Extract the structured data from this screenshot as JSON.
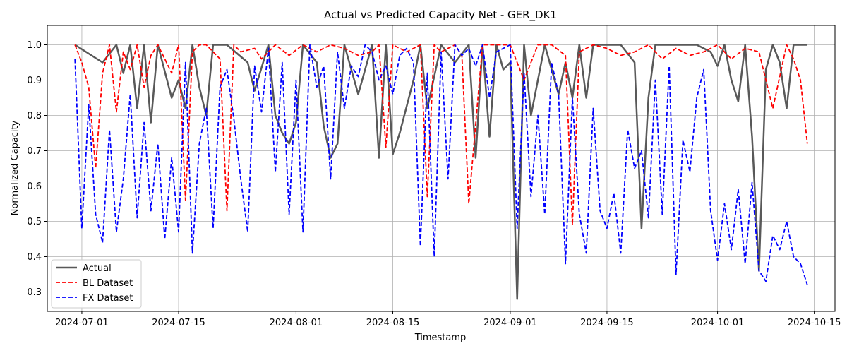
{
  "chart_data": {
    "type": "line",
    "title": "Actual vs Predicted Capacity Net - GER_DK1",
    "xlabel": "Timestamp",
    "ylabel": "Normalized Capacity",
    "x_range": [
      "2024-06-26",
      "2024-10-18"
    ],
    "ylim": [
      0.245,
      1.055
    ],
    "x_ticks": [
      "2024-07-01",
      "2024-07-15",
      "2024-08-01",
      "2024-08-15",
      "2024-09-01",
      "2024-09-15",
      "2024-10-01",
      "2024-10-15"
    ],
    "y_ticks": [
      0.3,
      0.4,
      0.5,
      0.6,
      0.7,
      0.8,
      0.9,
      1.0
    ],
    "y_tick_labels": [
      "0.3",
      "0.4",
      "0.5",
      "0.6",
      "0.7",
      "0.8",
      "0.9",
      "1.0"
    ],
    "grid": true,
    "legend_position": "lower-left",
    "series": [
      {
        "name": "Actual",
        "color": "#595959",
        "style": "solid",
        "x": [
          "2024-06-30",
          "2024-07-04",
          "2024-07-06",
          "2024-07-07",
          "2024-07-08",
          "2024-07-09",
          "2024-07-10",
          "2024-07-11",
          "2024-07-12",
          "2024-07-14",
          "2024-07-15",
          "2024-07-16",
          "2024-07-17",
          "2024-07-18",
          "2024-07-19",
          "2024-07-20",
          "2024-07-22",
          "2024-07-25",
          "2024-07-26",
          "2024-07-28",
          "2024-07-29",
          "2024-07-30",
          "2024-07-31",
          "2024-08-01",
          "2024-08-02",
          "2024-08-04",
          "2024-08-05",
          "2024-08-06",
          "2024-08-07",
          "2024-08-08",
          "2024-08-10",
          "2024-08-12",
          "2024-08-13",
          "2024-08-14",
          "2024-08-15",
          "2024-08-16",
          "2024-08-18",
          "2024-08-19",
          "2024-08-20",
          "2024-08-22",
          "2024-08-24",
          "2024-08-26",
          "2024-08-27",
          "2024-08-28",
          "2024-08-29",
          "2024-08-30",
          "2024-08-31",
          "2024-09-01",
          "2024-09-02",
          "2024-09-03",
          "2024-09-04",
          "2024-09-06",
          "2024-09-08",
          "2024-09-09",
          "2024-09-10",
          "2024-09-11",
          "2024-09-12",
          "2024-09-13",
          "2024-09-15",
          "2024-09-17",
          "2024-09-19",
          "2024-09-20",
          "2024-09-21",
          "2024-09-22",
          "2024-09-24",
          "2024-09-26",
          "2024-09-28",
          "2024-09-30",
          "2024-10-01",
          "2024-10-02",
          "2024-10-03",
          "2024-10-04",
          "2024-10-05",
          "2024-10-06",
          "2024-10-07",
          "2024-10-08",
          "2024-10-09",
          "2024-10-10",
          "2024-10-11",
          "2024-10-12",
          "2024-10-13",
          "2024-10-14"
        ],
        "values": [
          1.0,
          0.95,
          1.0,
          0.92,
          1.0,
          0.82,
          1.0,
          0.78,
          1.0,
          0.85,
          0.9,
          0.82,
          1.0,
          0.88,
          0.8,
          1.0,
          1.0,
          0.95,
          0.87,
          1.0,
          0.8,
          0.75,
          0.72,
          0.78,
          1.0,
          0.95,
          0.77,
          0.68,
          0.72,
          1.0,
          0.86,
          1.0,
          0.68,
          1.0,
          0.69,
          0.75,
          0.9,
          1.0,
          0.82,
          1.0,
          0.95,
          1.0,
          0.68,
          1.0,
          0.74,
          1.0,
          0.93,
          0.95,
          0.28,
          1.0,
          0.8,
          1.0,
          0.86,
          0.95,
          0.85,
          1.0,
          0.85,
          1.0,
          1.0,
          1.0,
          0.95,
          0.48,
          0.85,
          1.0,
          1.0,
          1.0,
          1.0,
          0.98,
          0.94,
          1.0,
          0.9,
          0.84,
          1.0,
          0.74,
          0.36,
          0.93,
          1.0,
          0.95,
          0.82,
          1.0,
          1.0,
          1.0
        ]
      },
      {
        "name": "BL Dataset",
        "color": "#ff0000",
        "style": "dashed",
        "x": [
          "2024-06-30",
          "2024-07-01",
          "2024-07-02",
          "2024-07-03",
          "2024-07-04",
          "2024-07-05",
          "2024-07-06",
          "2024-07-07",
          "2024-07-08",
          "2024-07-09",
          "2024-07-10",
          "2024-07-11",
          "2024-07-12",
          "2024-07-14",
          "2024-07-15",
          "2024-07-16",
          "2024-07-17",
          "2024-07-18",
          "2024-07-19",
          "2024-07-21",
          "2024-07-22",
          "2024-07-23",
          "2024-07-24",
          "2024-07-26",
          "2024-07-27",
          "2024-07-29",
          "2024-07-31",
          "2024-08-02",
          "2024-08-04",
          "2024-08-06",
          "2024-08-08",
          "2024-08-10",
          "2024-08-12",
          "2024-08-13",
          "2024-08-14",
          "2024-08-15",
          "2024-08-17",
          "2024-08-19",
          "2024-08-20",
          "2024-08-21",
          "2024-08-22",
          "2024-08-24",
          "2024-08-25",
          "2024-08-26",
          "2024-08-28",
          "2024-08-30",
          "2024-09-01",
          "2024-09-03",
          "2024-09-05",
          "2024-09-07",
          "2024-09-09",
          "2024-09-10",
          "2024-09-11",
          "2024-09-13",
          "2024-09-15",
          "2024-09-17",
          "2024-09-19",
          "2024-09-21",
          "2024-09-23",
          "2024-09-25",
          "2024-09-27",
          "2024-09-29",
          "2024-10-01",
          "2024-10-03",
          "2024-10-05",
          "2024-10-07",
          "2024-10-09",
          "2024-10-11",
          "2024-10-12",
          "2024-10-13",
          "2024-10-14"
        ],
        "values": [
          1.0,
          0.95,
          0.88,
          0.65,
          0.92,
          1.0,
          0.81,
          0.98,
          0.93,
          1.0,
          0.88,
          0.97,
          1.0,
          0.92,
          1.0,
          0.56,
          0.98,
          1.0,
          1.0,
          0.96,
          0.53,
          1.0,
          0.98,
          0.99,
          0.96,
          1.0,
          0.97,
          1.0,
          0.98,
          1.0,
          0.99,
          0.97,
          0.98,
          1.0,
          0.71,
          1.0,
          0.98,
          1.0,
          0.57,
          1.0,
          0.98,
          1.0,
          0.97,
          0.55,
          1.0,
          1.0,
          1.0,
          0.9,
          1.0,
          1.0,
          0.97,
          0.49,
          0.98,
          1.0,
          0.99,
          0.97,
          0.98,
          1.0,
          0.96,
          0.99,
          0.97,
          0.98,
          1.0,
          0.96,
          0.99,
          0.98,
          0.82,
          1.0,
          0.96,
          0.9,
          0.72
        ]
      },
      {
        "name": "FX Dataset",
        "color": "#0000ff",
        "style": "dashed",
        "x": [
          "2024-06-30",
          "2024-07-01",
          "2024-07-02",
          "2024-07-03",
          "2024-07-04",
          "2024-07-05",
          "2024-07-06",
          "2024-07-07",
          "2024-07-08",
          "2024-07-09",
          "2024-07-10",
          "2024-07-11",
          "2024-07-12",
          "2024-07-13",
          "2024-07-14",
          "2024-07-15",
          "2024-07-16",
          "2024-07-17",
          "2024-07-18",
          "2024-07-19",
          "2024-07-20",
          "2024-07-21",
          "2024-07-22",
          "2024-07-23",
          "2024-07-24",
          "2024-07-25",
          "2024-07-26",
          "2024-07-27",
          "2024-07-28",
          "2024-07-29",
          "2024-07-30",
          "2024-07-31",
          "2024-08-01",
          "2024-08-02",
          "2024-08-03",
          "2024-08-04",
          "2024-08-05",
          "2024-08-06",
          "2024-08-07",
          "2024-08-08",
          "2024-08-09",
          "2024-08-10",
          "2024-08-11",
          "2024-08-12",
          "2024-08-13",
          "2024-08-14",
          "2024-08-15",
          "2024-08-16",
          "2024-08-17",
          "2024-08-18",
          "2024-08-19",
          "2024-08-20",
          "2024-08-21",
          "2024-08-22",
          "2024-08-23",
          "2024-08-24",
          "2024-08-25",
          "2024-08-26",
          "2024-08-27",
          "2024-08-28",
          "2024-08-29",
          "2024-08-30",
          "2024-08-31",
          "2024-09-01",
          "2024-09-02",
          "2024-09-03",
          "2024-09-04",
          "2024-09-05",
          "2024-09-06",
          "2024-09-07",
          "2024-09-08",
          "2024-09-09",
          "2024-09-10",
          "2024-09-11",
          "2024-09-12",
          "2024-09-13",
          "2024-09-14",
          "2024-09-15",
          "2024-09-16",
          "2024-09-17",
          "2024-09-18",
          "2024-09-19",
          "2024-09-20",
          "2024-09-21",
          "2024-09-22",
          "2024-09-23",
          "2024-09-24",
          "2024-09-25",
          "2024-09-26",
          "2024-09-27",
          "2024-09-28",
          "2024-09-29",
          "2024-09-30",
          "2024-10-01",
          "2024-10-02",
          "2024-10-03",
          "2024-10-04",
          "2024-10-05",
          "2024-10-06",
          "2024-10-07",
          "2024-10-08",
          "2024-10-09",
          "2024-10-10",
          "2024-10-11",
          "2024-10-12",
          "2024-10-13",
          "2024-10-14"
        ],
        "values": [
          0.96,
          0.48,
          0.83,
          0.52,
          0.44,
          0.76,
          0.47,
          0.62,
          0.86,
          0.51,
          0.78,
          0.53,
          0.72,
          0.45,
          0.68,
          0.47,
          0.95,
          0.41,
          0.72,
          0.82,
          0.48,
          0.88,
          0.93,
          0.79,
          0.62,
          0.47,
          0.94,
          0.81,
          0.99,
          0.64,
          0.95,
          0.52,
          0.9,
          0.47,
          1.0,
          0.88,
          0.94,
          0.62,
          0.98,
          0.82,
          0.94,
          0.91,
          1.0,
          0.98,
          0.9,
          0.94,
          0.86,
          0.97,
          0.99,
          0.95,
          0.43,
          0.92,
          0.4,
          0.98,
          0.62,
          1.0,
          0.97,
          0.99,
          0.94,
          1.0,
          0.85,
          0.98,
          0.99,
          1.0,
          0.48,
          0.92,
          0.57,
          0.8,
          0.52,
          0.95,
          0.86,
          0.38,
          0.85,
          0.52,
          0.41,
          0.82,
          0.53,
          0.48,
          0.58,
          0.41,
          0.76,
          0.65,
          0.7,
          0.51,
          0.9,
          0.52,
          0.94,
          0.35,
          0.73,
          0.64,
          0.85,
          0.93,
          0.53,
          0.39,
          0.55,
          0.42,
          0.59,
          0.38,
          0.61,
          0.36,
          0.33,
          0.46,
          0.42,
          0.5,
          0.4,
          0.38,
          0.32
        ]
      }
    ]
  }
}
